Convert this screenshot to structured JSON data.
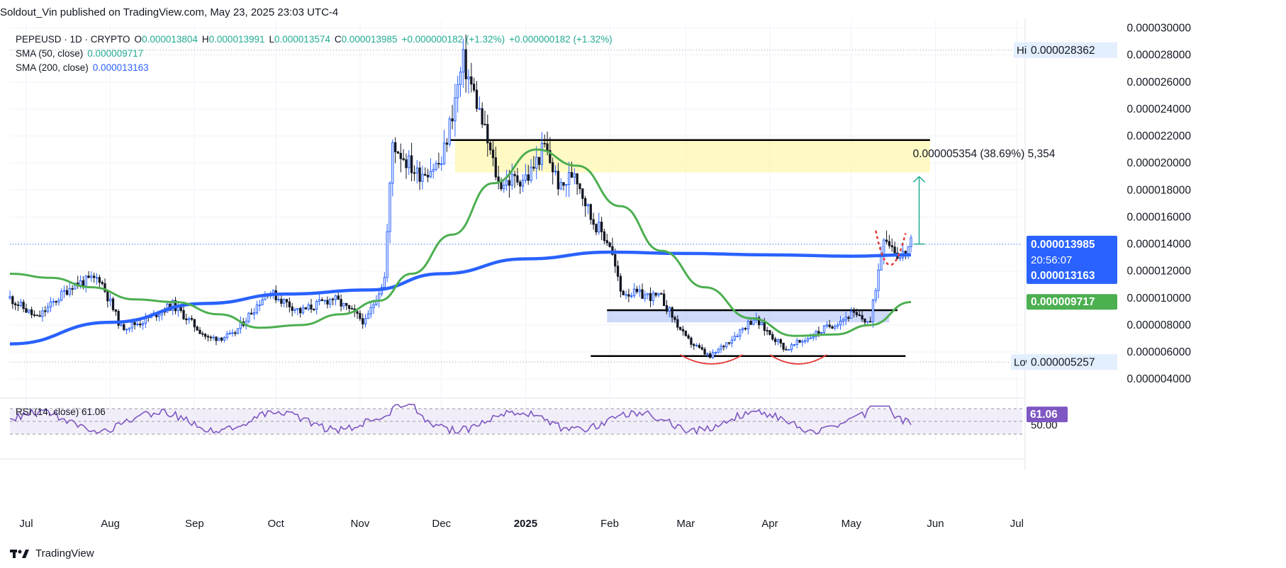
{
  "header": {
    "published": "Soldout_Vin published on TradingView.com, May 23, 2025 23:03 UTC-4"
  },
  "legend": {
    "symbol": "PEPEUSD · 1D · CRYPTO",
    "open_label": "O",
    "open": "0.000013804",
    "high_label": "H",
    "high": "0.000013991",
    "low_label": "L",
    "low": "0.000013574",
    "close_label": "C",
    "close": "0.000013985",
    "change": "+0.000000182 (+1.32%)",
    "change2": "+0.000000182 (+1.32%)",
    "sma50_label": "SMA (50, close)",
    "sma50_value": "0.000009717",
    "sma200_label": "SMA (200, close)",
    "sma200_value": "0.000013163"
  },
  "footer": {
    "brand": "TradingView"
  },
  "chart_data": {
    "type": "candlestick",
    "price_axis": {
      "ticks": [
        "0.000030000",
        "0.000028000",
        "0.000026000",
        "0.000024000",
        "0.000022000",
        "0.000020000",
        "0.000018000",
        "0.000016000",
        "0.000014000",
        "0.000012000",
        "0.000010000",
        "0.000008000",
        "0.000006000",
        "0.000004000"
      ],
      "range": [
        2.7e-06,
        3.05e-05
      ]
    },
    "time_axis": {
      "labels": [
        "Jul",
        "Aug",
        "Sep",
        "Oct",
        "Nov",
        "Dec",
        "2025",
        "Feb",
        "Mar",
        "Apr",
        "May",
        "Jun",
        "Jul"
      ]
    },
    "price_labels": {
      "high_text": "High",
      "high": "0.000028362",
      "low_text": "Low",
      "low": "0.000005257",
      "last": "0.000013985",
      "countdown": "20:56:07",
      "sma200": "0.000013163",
      "sma50": "0.000009717"
    },
    "measure": {
      "label": "0.000005354 (38.69%)  5,354",
      "from": 1.4e-05,
      "to": 1.9e-05
    },
    "zones": {
      "resistance": [
        1.93e-05,
        2.17e-05
      ],
      "support": [
        8.2e-06,
        9.1e-06
      ],
      "resistance_line": 2.17e-05,
      "support_line": 9.1e-06,
      "bottom_line": 5.7e-06
    },
    "anchors": [
      [
        "2024-06-25",
        1e-05
      ],
      [
        "2024-07-05",
        8.5e-06
      ],
      [
        "2024-07-18",
        1.1e-05
      ],
      [
        "2024-07-28",
        1.15e-05
      ],
      [
        "2024-08-05",
        7.8e-06
      ],
      [
        "2024-08-12",
        8.2e-06
      ],
      [
        "2024-08-24",
        9.5e-06
      ],
      [
        "2024-09-06",
        7e-06
      ],
      [
        "2024-09-15",
        7.2e-06
      ],
      [
        "2024-09-28",
        1.05e-05
      ],
      [
        "2024-10-10",
        9e-06
      ],
      [
        "2024-10-22",
        1e-05
      ],
      [
        "2024-11-03",
        8.2e-06
      ],
      [
        "2024-11-10",
        1.15e-05
      ],
      [
        "2024-11-13",
        2.15e-05
      ],
      [
        "2024-11-22",
        1.92e-05
      ],
      [
        "2024-12-01",
        2e-05
      ],
      [
        "2024-12-09",
        2.75e-05
      ],
      [
        "2024-12-14",
        2.45e-05
      ],
      [
        "2024-12-22",
        1.85e-05
      ],
      [
        "2025-01-02",
        1.9e-05
      ],
      [
        "2025-01-08",
        2.12e-05
      ],
      [
        "2025-01-14",
        1.8e-05
      ],
      [
        "2025-01-19",
        1.95e-05
      ],
      [
        "2025-01-25",
        1.6e-05
      ],
      [
        "2025-02-01",
        1.4e-05
      ],
      [
        "2025-02-05",
        1.05e-05
      ],
      [
        "2025-02-20",
        1e-05
      ],
      [
        "2025-03-01",
        7e-06
      ],
      [
        "2025-03-10",
        5.6e-06
      ],
      [
        "2025-03-26",
        8.5e-06
      ],
      [
        "2025-04-07",
        6.2e-06
      ],
      [
        "2025-04-20",
        7.6e-06
      ],
      [
        "2025-05-01",
        8.8e-06
      ],
      [
        "2025-05-08",
        8.2e-06
      ],
      [
        "2025-05-13",
        1.48e-05
      ],
      [
        "2025-05-19",
        1.3e-05
      ],
      [
        "2025-05-23",
        1.4e-05
      ]
    ],
    "sma50": [
      [
        "2024-06-25",
        1.18e-05
      ],
      [
        "2024-07-10",
        1.15e-05
      ],
      [
        "2024-07-25",
        1.08e-05
      ],
      [
        "2024-08-10",
        9.9e-06
      ],
      [
        "2024-08-25",
        9.7e-06
      ],
      [
        "2024-09-10",
        8.8e-06
      ],
      [
        "2024-09-25",
        7.8e-06
      ],
      [
        "2024-10-10",
        8e-06
      ],
      [
        "2024-10-25",
        8.8e-06
      ],
      [
        "2024-11-08",
        9.8e-06
      ],
      [
        "2024-11-20",
        1.18e-05
      ],
      [
        "2024-12-05",
        1.47e-05
      ],
      [
        "2024-12-20",
        1.85e-05
      ],
      [
        "2025-01-05",
        2.1e-05
      ],
      [
        "2025-01-20",
        1.98e-05
      ],
      [
        "2025-02-05",
        1.68e-05
      ],
      [
        "2025-02-20",
        1.35e-05
      ],
      [
        "2025-03-08",
        1.08e-05
      ],
      [
        "2025-03-25",
        8.5e-06
      ],
      [
        "2025-04-10",
        7.2e-06
      ],
      [
        "2025-04-25",
        7.3e-06
      ],
      [
        "2025-05-08",
        8e-06
      ],
      [
        "2025-05-23",
        9.7e-06
      ]
    ],
    "sma200": [
      [
        "2024-06-25",
        6.6e-06
      ],
      [
        "2024-08-01",
        8.2e-06
      ],
      [
        "2024-09-05",
        9.6e-06
      ],
      [
        "2024-10-05",
        1.03e-05
      ],
      [
        "2024-11-05",
        1.06e-05
      ],
      [
        "2024-12-01",
        1.18e-05
      ],
      [
        "2025-01-01",
        1.29e-05
      ],
      [
        "2025-02-01",
        1.34e-05
      ],
      [
        "2025-03-01",
        1.33e-05
      ],
      [
        "2025-04-01",
        1.32e-05
      ],
      [
        "2025-05-01",
        1.31e-05
      ],
      [
        "2025-05-23",
        1.32e-05
      ]
    ],
    "rsi": {
      "label": "RSI (14, close)",
      "value": "61.06",
      "axis_label": "50.00",
      "levels": [
        70,
        50,
        30
      ]
    },
    "colors": {
      "up": "#089981",
      "down": "#131722",
      "sma50": "#4caf50",
      "sma200": "#2962ff",
      "rsi": "#7e57c2",
      "zone_yellow": "#fff59d",
      "zone_blue": "#a7b9f5",
      "red_dash": "#e53935"
    }
  }
}
